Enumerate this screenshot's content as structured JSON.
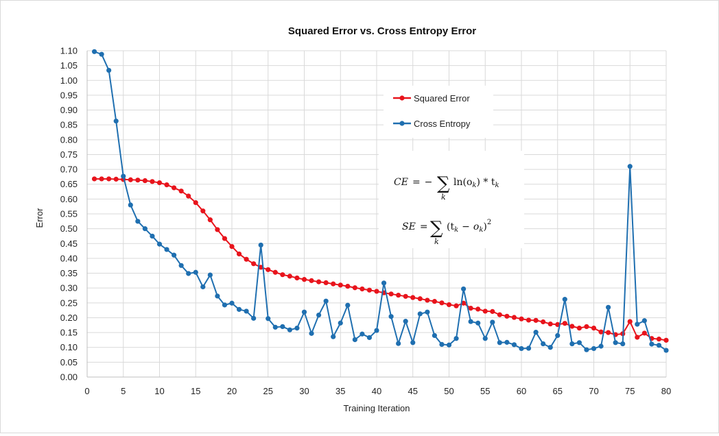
{
  "chart_data": {
    "type": "line",
    "title": "Squared Error vs. Cross Entropy Error",
    "xlabel": "Training Iteration",
    "ylabel": "Error",
    "xlim": [
      0,
      80
    ],
    "ylim": [
      0,
      1.1
    ],
    "x_ticks": [
      "0",
      "5",
      "10",
      "15",
      "20",
      "25",
      "30",
      "35",
      "40",
      "45",
      "50",
      "55",
      "60",
      "65",
      "70",
      "75",
      "80"
    ],
    "y_ticks": [
      "0.00",
      "0.05",
      "0.10",
      "0.15",
      "0.20",
      "0.25",
      "0.30",
      "0.35",
      "0.40",
      "0.45",
      "0.50",
      "0.55",
      "0.60",
      "0.65",
      "0.70",
      "0.75",
      "0.80",
      "0.85",
      "0.90",
      "0.95",
      "1.00",
      "1.05",
      "1.10"
    ],
    "grid": true,
    "legend_position": "upper-right-inside",
    "x": [
      1,
      2,
      3,
      4,
      5,
      6,
      7,
      8,
      9,
      10,
      11,
      12,
      13,
      14,
      15,
      16,
      17,
      18,
      19,
      20,
      21,
      22,
      23,
      24,
      25,
      26,
      27,
      28,
      29,
      30,
      31,
      32,
      33,
      34,
      35,
      36,
      37,
      38,
      39,
      40,
      41,
      42,
      43,
      44,
      45,
      46,
      47,
      48,
      49,
      50,
      51,
      52,
      53,
      54,
      55,
      56,
      57,
      58,
      59,
      60,
      61,
      62,
      63,
      64,
      65,
      66,
      67,
      68,
      69,
      70,
      71,
      72,
      73,
      74,
      75,
      76,
      77,
      78,
      79,
      80
    ],
    "series": [
      {
        "name": "Squared Error",
        "color": "#e8141c",
        "values": [
          0.668,
          0.668,
          0.668,
          0.667,
          0.666,
          0.665,
          0.664,
          0.662,
          0.659,
          0.655,
          0.648,
          0.638,
          0.627,
          0.61,
          0.588,
          0.56,
          0.53,
          0.497,
          0.467,
          0.44,
          0.415,
          0.397,
          0.382,
          0.37,
          0.362,
          0.353,
          0.345,
          0.34,
          0.334,
          0.329,
          0.325,
          0.321,
          0.318,
          0.314,
          0.31,
          0.306,
          0.301,
          0.297,
          0.293,
          0.289,
          0.284,
          0.28,
          0.276,
          0.272,
          0.268,
          0.264,
          0.259,
          0.255,
          0.25,
          0.244,
          0.24,
          0.249,
          0.232,
          0.229,
          0.222,
          0.221,
          0.21,
          0.205,
          0.201,
          0.196,
          0.192,
          0.191,
          0.186,
          0.179,
          0.177,
          0.181,
          0.171,
          0.165,
          0.17,
          0.165,
          0.152,
          0.15,
          0.143,
          0.146,
          0.187,
          0.134,
          0.148,
          0.13,
          0.128,
          0.124
        ]
      },
      {
        "name": "Cross Entropy",
        "color": "#1f6fb0",
        "values": [
          1.097,
          1.088,
          1.034,
          0.863,
          0.677,
          0.58,
          0.525,
          0.5,
          0.475,
          0.448,
          0.43,
          0.411,
          0.376,
          0.349,
          0.353,
          0.304,
          0.344,
          0.273,
          0.243,
          0.249,
          0.228,
          0.222,
          0.198,
          0.445,
          0.197,
          0.168,
          0.17,
          0.159,
          0.165,
          0.219,
          0.147,
          0.209,
          0.256,
          0.136,
          0.182,
          0.242,
          0.126,
          0.145,
          0.133,
          0.157,
          0.317,
          0.204,
          0.113,
          0.188,
          0.116,
          0.213,
          0.219,
          0.14,
          0.11,
          0.108,
          0.13,
          0.297,
          0.187,
          0.182,
          0.13,
          0.185,
          0.116,
          0.117,
          0.109,
          0.096,
          0.097,
          0.151,
          0.112,
          0.1,
          0.14,
          0.262,
          0.112,
          0.116,
          0.092,
          0.096,
          0.104,
          0.235,
          0.116,
          0.112,
          0.71,
          0.178,
          0.19,
          0.111,
          0.107,
          0.09
        ]
      }
    ]
  },
  "formulas": {
    "ce": {
      "lhs": "CE",
      "eq": "=",
      "minus": "−",
      "sum": "∑",
      "sub": "k",
      "body_ln": "ln(o",
      "body_rest": ") * t",
      "k": "k"
    },
    "se": {
      "lhs": "SE",
      "eq": "=",
      "sum": "∑",
      "sub": "k",
      "body": "(t",
      "minus": "−",
      "o": "o",
      "close": ")",
      "power": "2",
      "k": "k"
    }
  }
}
